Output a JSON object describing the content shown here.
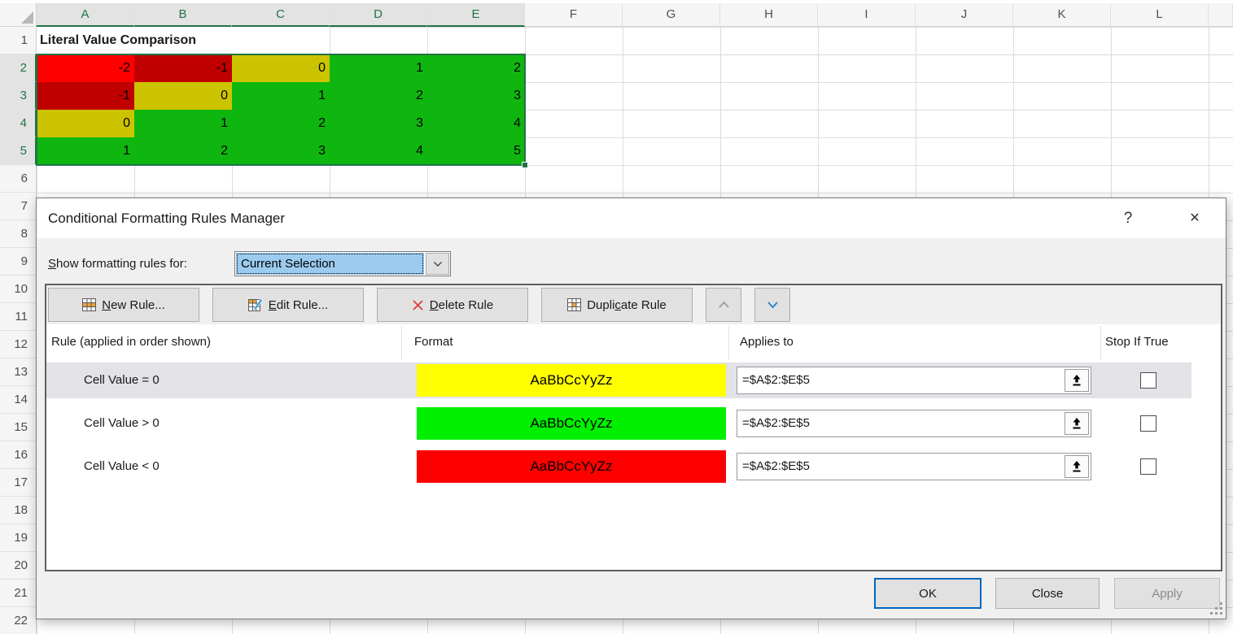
{
  "sheet": {
    "columns": [
      "A",
      "B",
      "C",
      "D",
      "E",
      "F",
      "G",
      "H",
      "I",
      "J",
      "K",
      "L"
    ],
    "selected_columns": [
      "A",
      "B",
      "C",
      "D",
      "E"
    ],
    "rows": [
      "1",
      "2",
      "3",
      "4",
      "5",
      "6",
      "7",
      "8",
      "9",
      "10",
      "11",
      "12",
      "13",
      "14",
      "15",
      "16",
      "17",
      "18",
      "19",
      "20",
      "21",
      "22"
    ],
    "selected_rows": [
      "2",
      "3",
      "4",
      "5"
    ],
    "title_cell": "Literal Value Comparison",
    "matrix": [
      [
        {
          "v": "-2",
          "c": "#FF0000"
        },
        {
          "v": "-1",
          "c": "#C00000"
        },
        {
          "v": "0",
          "c": "#CCC400"
        },
        {
          "v": "1",
          "c": "#0FB60F"
        },
        {
          "v": "2",
          "c": "#0FB60F"
        }
      ],
      [
        {
          "v": "-1",
          "c": "#C00000"
        },
        {
          "v": "0",
          "c": "#CCC400"
        },
        {
          "v": "1",
          "c": "#0FB60F"
        },
        {
          "v": "2",
          "c": "#0FB60F"
        },
        {
          "v": "3",
          "c": "#0FB60F"
        }
      ],
      [
        {
          "v": "0",
          "c": "#CCC400"
        },
        {
          "v": "1",
          "c": "#0FB60F"
        },
        {
          "v": "2",
          "c": "#0FB60F"
        },
        {
          "v": "3",
          "c": "#0FB60F"
        },
        {
          "v": "4",
          "c": "#0FB60F"
        }
      ],
      [
        {
          "v": "1",
          "c": "#0FB60F"
        },
        {
          "v": "2",
          "c": "#0FB60F"
        },
        {
          "v": "3",
          "c": "#0FB60F"
        },
        {
          "v": "4",
          "c": "#0FB60F"
        },
        {
          "v": "5",
          "c": "#0FB60F"
        }
      ]
    ],
    "selection_range": "A2:E5"
  },
  "dialog": {
    "title": "Conditional Formatting Rules Manager",
    "help_glyph": "?",
    "close_glyph": "✕",
    "show_rules_label": {
      "pre": "",
      "u": "S",
      "post": "how formatting rules for:"
    },
    "scope_dropdown": {
      "value": "Current Selection"
    },
    "buttons": {
      "new_rule": {
        "pre": "",
        "u": "N",
        "post": "ew Rule..."
      },
      "edit_rule": {
        "pre": "",
        "u": "E",
        "post": "dit Rule..."
      },
      "delete_rule": {
        "pre": "",
        "u": "D",
        "post": "elete Rule"
      },
      "duplicate_rule": {
        "pre": "Dupli",
        "u": "c",
        "post": "ate Rule"
      }
    },
    "list": {
      "headers": {
        "rule": "Rule (applied in order shown)",
        "format": "Format",
        "applies": "Applies to",
        "stop": "Stop If True"
      },
      "rules": [
        {
          "condition": "Cell Value = 0",
          "swatch_color": "#FFFF00",
          "sample": "AaBbCcYyZz",
          "applies_to": "=$A$2:$E$5",
          "stop_if_true": false,
          "selected": true
        },
        {
          "condition": "Cell Value > 0",
          "swatch_color": "#00F000",
          "sample": "AaBbCcYyZz",
          "applies_to": "=$A$2:$E$5",
          "stop_if_true": false,
          "selected": false
        },
        {
          "condition": "Cell Value < 0",
          "swatch_color": "#FF0000",
          "sample": "AaBbCcYyZz",
          "applies_to": "=$A$2:$E$5",
          "stop_if_true": false,
          "selected": false
        }
      ]
    },
    "footer": {
      "ok": "OK",
      "close": "Close",
      "apply": "Apply"
    }
  },
  "colors": {
    "excel_accent_green": "#217346",
    "selected_header_bg": "#e3e3e3",
    "dropdown_highlight": "#9bcbef",
    "default_button_border": "#0067c0",
    "selected_row_bg": "#e2e2e7",
    "gridline": "#dcdcdc"
  }
}
